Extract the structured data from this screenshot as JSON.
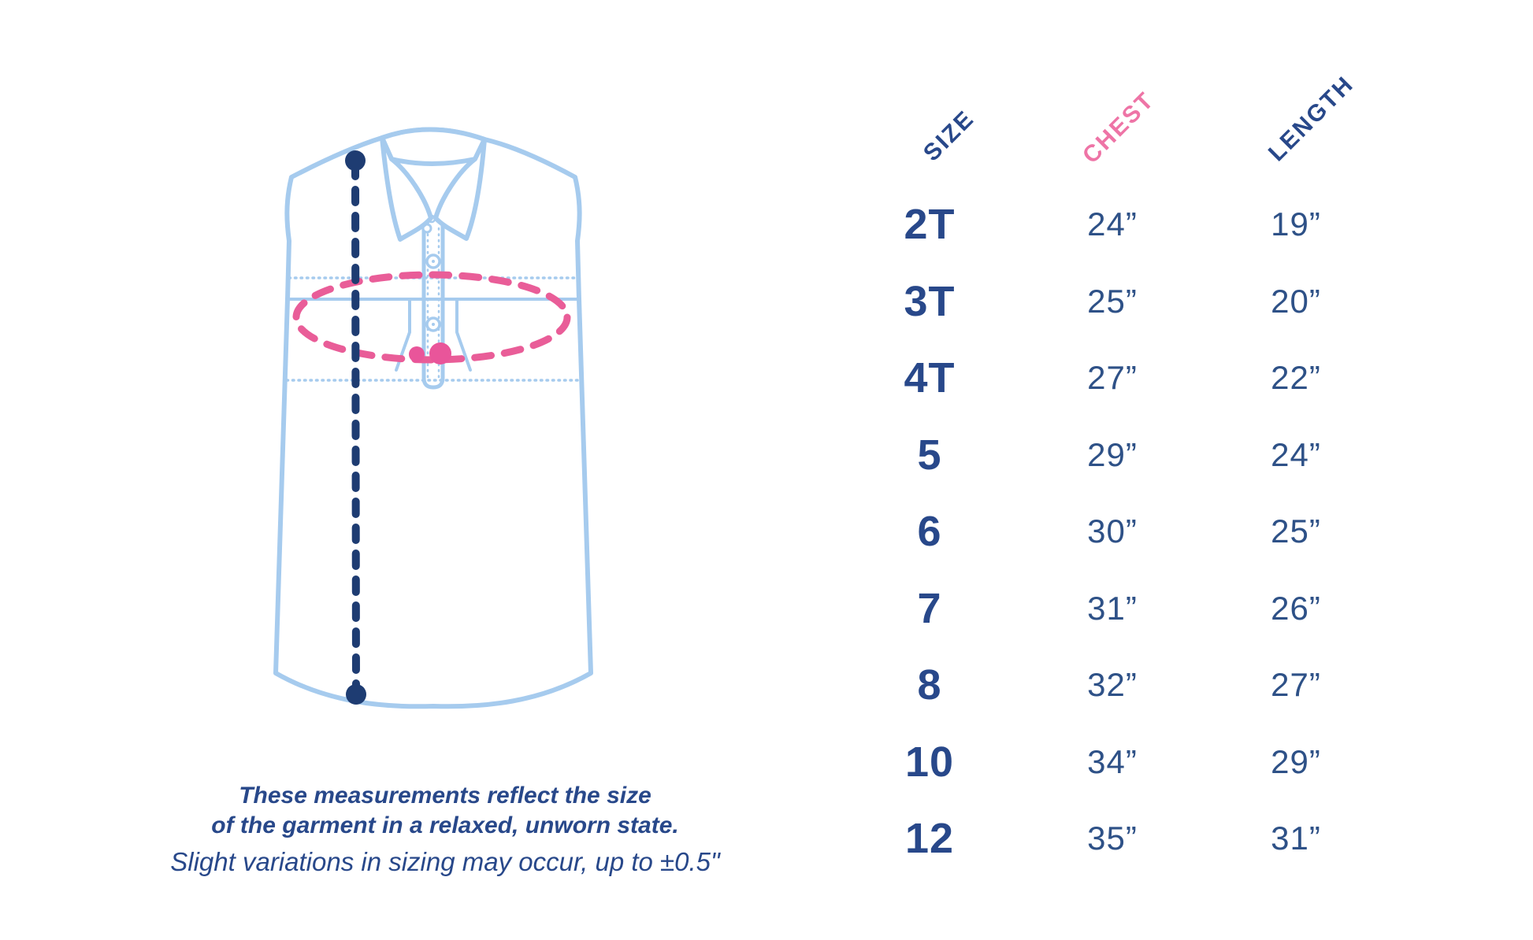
{
  "colors": {
    "navy_text": "#28488a",
    "navy_value": "#2e5187",
    "navy_line": "#1e3c72",
    "pink": "#e95d98",
    "pink_header": "#ee74a6",
    "light_blue": "#a6cbee"
  },
  "note": {
    "line1": "These measurements reflect the size",
    "line2": "of the garment in a relaxed, unworn state.",
    "line3": "Slight variations in sizing may occur, up to ±0.5\""
  },
  "table": {
    "headers": [
      {
        "label": "SIZE"
      },
      {
        "label": "CHEST"
      },
      {
        "label": "LENGTH"
      }
    ]
  },
  "chart_data": {
    "type": "table",
    "columns": [
      "SIZE",
      "CHEST",
      "LENGTH"
    ],
    "rows": [
      [
        "2T",
        "24”",
        "19”"
      ],
      [
        "3T",
        "25”",
        "20”"
      ],
      [
        "4T",
        "27”",
        "22”"
      ],
      [
        "5",
        "29”",
        "24”"
      ],
      [
        "6",
        "30”",
        "25”"
      ],
      [
        "7",
        "31”",
        "26”"
      ],
      [
        "8",
        "32”",
        "27”"
      ],
      [
        "10",
        "34”",
        "29”"
      ],
      [
        "12",
        "35”",
        "31”"
      ]
    ],
    "units": "inches",
    "layout": {
      "header_rotation_deg": -45,
      "chest_header_color": "pink",
      "size_and_length_header_color": "navy"
    }
  },
  "illustration": {
    "garment": "sleeveless-button-up-shirt",
    "length_measure": "vertical dashed navy line with end dots",
    "chest_measure": "dashed pink ellipse with two pink dots"
  }
}
